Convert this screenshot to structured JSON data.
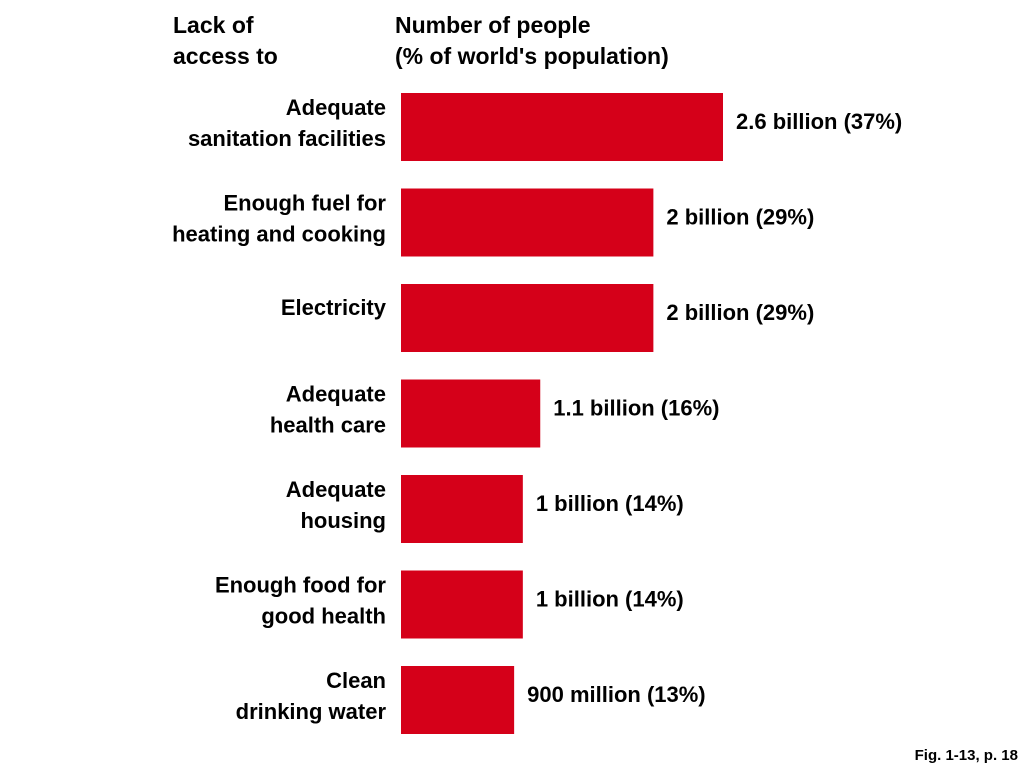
{
  "chart_data": {
    "type": "bar",
    "orientation": "horizontal",
    "header_left": "Lack of\naccess to",
    "header_right": "Number of people\n(% of world's population)",
    "categories": [
      "Adequate\nsanitation facilities",
      "Enough fuel for\nheating and cooking",
      "Electricity",
      "Adequate\nhealth care",
      "Adequate\nhousing",
      "Enough food for\ngood health",
      "Clean\ndrinking water"
    ],
    "values": [
      37,
      29,
      29,
      16,
      14,
      14,
      13
    ],
    "value_unit": "% of world's population",
    "value_labels": [
      "2.6 billion (37%)",
      "2 billion (29%)",
      "2 billion (29%)",
      "1.1 billion (16%)",
      "1 billion (14%)",
      "1 billion (14%)",
      "900 million (13%)"
    ],
    "bar_color": "#D50019",
    "grid": false,
    "legend": "none"
  },
  "footer": "Fig. 1-13, p. 18"
}
